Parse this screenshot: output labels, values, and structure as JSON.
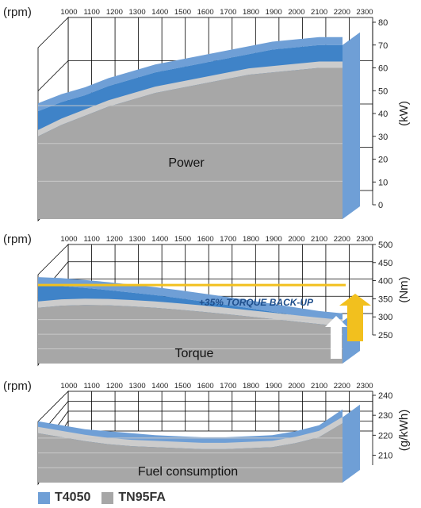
{
  "colors": {
    "t4050": "#6f9fd6",
    "t4050_dark": "#3f83c8",
    "tn95fa": "#a7a7a7",
    "tn95fa_light": "#cccccc",
    "back_wall": "#ffffff",
    "floor_light": "#d6d6d6",
    "arrow_yellow": "#f2c01e",
    "torque_text": "#1f4f8c"
  },
  "legend": [
    {
      "label": "T4050",
      "color": "#6f9fd6"
    },
    {
      "label": "TN95FA",
      "color": "#a7a7a7"
    }
  ],
  "chart_data": [
    {
      "type": "area",
      "title": "Power",
      "xlabel": "(rpm)",
      "ylabel": "(kW)",
      "x": [
        1000,
        1100,
        1200,
        1300,
        1400,
        1500,
        1600,
        1700,
        1800,
        1900,
        2000,
        2100,
        2200,
        2300
      ],
      "x_tick_labels": [
        "1000",
        "1100",
        "1200",
        "1300",
        "1400",
        "1500",
        "1600",
        "1700",
        "1800",
        "1900",
        "2000",
        "2100",
        "2200",
        "2300"
      ],
      "y_ticks": [
        "0",
        "10",
        "20",
        "30",
        "40",
        "50",
        "60",
        "70",
        "80"
      ],
      "ylim": [
        0,
        80
      ],
      "series": [
        {
          "name": "T4050",
          "values": [
            41,
            45,
            48,
            52,
            55,
            58,
            60,
            62,
            64,
            66,
            68,
            69,
            70,
            70
          ]
        },
        {
          "name": "TN95FA",
          "values": [
            30,
            35,
            39,
            43,
            46,
            49,
            51,
            53,
            55,
            57,
            58,
            59,
            60,
            60
          ]
        }
      ]
    },
    {
      "type": "area",
      "title": "Torque",
      "xlabel": "(rpm)",
      "ylabel": "(Nm)",
      "x": [
        1000,
        1100,
        1200,
        1300,
        1400,
        1500,
        1600,
        1700,
        1800,
        1900,
        2000,
        2100,
        2200,
        2300
      ],
      "x_tick_labels": [
        "1000",
        "1100",
        "1200",
        "1300",
        "1400",
        "1500",
        "1600",
        "1700",
        "1800",
        "1900",
        "2000",
        "2100",
        "2200",
        "2300"
      ],
      "y_ticks": [
        "250",
        "300",
        "350",
        "400",
        "450",
        "500"
      ],
      "ylim": [
        250,
        500
      ],
      "annotation": "+35% TORQUE BACK-UP",
      "series": [
        {
          "name": "T4050",
          "values": [
            388,
            385,
            380,
            374,
            367,
            360,
            352,
            343,
            334,
            324,
            314,
            304,
            294,
            288
          ]
        },
        {
          "name": "TN95FA",
          "values": [
            325,
            331,
            333,
            332,
            329,
            325,
            320,
            314,
            308,
            301,
            294,
            287,
            280,
            274
          ]
        }
      ]
    },
    {
      "type": "area",
      "title": "Fuel consumption",
      "xlabel": "(rpm)",
      "ylabel": "(g/kWh)",
      "x": [
        1000,
        1100,
        1200,
        1300,
        1400,
        1500,
        1600,
        1700,
        1800,
        1900,
        2000,
        2100,
        2200,
        2300
      ],
      "x_tick_labels": [
        "1000",
        "1100",
        "1200",
        "1300",
        "1400",
        "1500",
        "1600",
        "1700",
        "1800",
        "1900",
        "2000",
        "2100",
        "2200",
        "2300"
      ],
      "y_ticks": [
        "210",
        "220",
        "230",
        "240"
      ],
      "ylim": [
        205,
        240
      ],
      "series": [
        {
          "name": "T4050",
          "values": [
            223,
            221,
            219,
            218,
            217,
            216,
            215.5,
            215,
            215,
            215.5,
            216,
            218,
            221,
            229
          ]
        },
        {
          "name": "TN95FA",
          "values": [
            221,
            219,
            217,
            215.5,
            214.5,
            214,
            213.5,
            213,
            213,
            213.5,
            214,
            216,
            219,
            226
          ]
        }
      ]
    }
  ]
}
